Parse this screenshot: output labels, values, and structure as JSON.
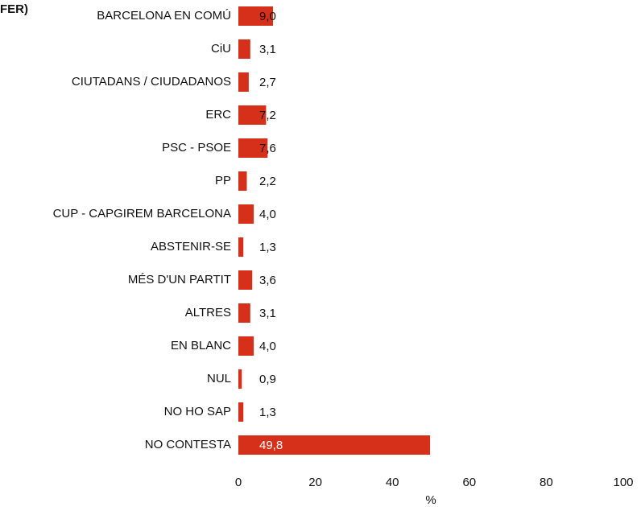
{
  "chart_data": {
    "type": "bar",
    "orientation": "horizontal",
    "title": "FER)",
    "categories": [
      "BARCELONA EN COMÚ",
      "CiU",
      "CIUTADANS / CIUDADANOS",
      "ERC",
      "PSC - PSOE",
      "PP",
      "CUP - CAPGIREM BARCELONA",
      "ABSTENIR-SE",
      "MÉS D'UN PARTIT",
      "ALTRES",
      "EN BLANC",
      "NUL",
      "NO HO SAP",
      "NO CONTESTA"
    ],
    "values": [
      9.0,
      3.1,
      2.7,
      7.2,
      7.6,
      2.2,
      4.0,
      1.3,
      3.6,
      3.1,
      4.0,
      0.9,
      1.3,
      49.8
    ],
    "value_labels": [
      "9,0",
      "3,1",
      "2,7",
      "7,2",
      "7,6",
      "2,2",
      "4,0",
      "1,3",
      "3,6",
      "3,1",
      "4,0",
      "0,9",
      "1,3",
      "49,8"
    ],
    "color": "#d7301a",
    "xlim": [
      0,
      100
    ],
    "xticks": [
      0,
      20,
      40,
      60,
      80,
      100
    ],
    "xlabel": "%",
    "grid": false
  }
}
